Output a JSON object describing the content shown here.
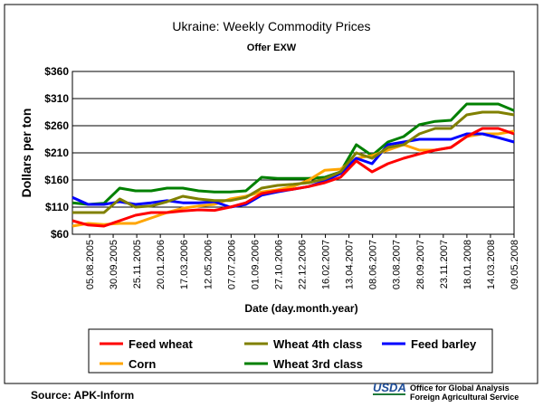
{
  "chart_data": {
    "type": "line",
    "title": "Ukraine:  Weekly Commodity Prices",
    "subtitle": "Offer EXW",
    "xlabel": "Date (day.month.year)",
    "ylabel": "Dollars per ton",
    "ylim": [
      60,
      360
    ],
    "y_ticks": [
      "$60",
      "$110",
      "$160",
      "$210",
      "$260",
      "$310",
      "$360"
    ],
    "y_tick_values": [
      60,
      110,
      160,
      210,
      260,
      310,
      360
    ],
    "x_tick_labels": [
      "05.08.2005",
      "30.09.2005",
      "25.11.2005",
      "20.01.2006",
      "17.03.2006",
      "12.05.2006",
      "07.07.2006",
      "01.09.2006",
      "27.10.2006",
      "22.12.2006",
      "16.02.2007",
      "13.04.2007",
      "08.06.2007",
      "03.08.2007",
      "28.09.2007",
      "23.11.2007",
      "18.01.2008",
      "14.03.2008",
      "09.05.2008"
    ],
    "grid": "horizontal",
    "legend_position": "bottom",
    "series": [
      {
        "name": "Feed wheat",
        "color": "#ff0000",
        "values": [
          85,
          77,
          75,
          85,
          95,
          100,
          100,
          103,
          105,
          104,
          110,
          118,
          135,
          140,
          143,
          148,
          155,
          165,
          195,
          175,
          190,
          200,
          208,
          215,
          220,
          240,
          255,
          255,
          245
        ]
      },
      {
        "name": "Wheat 4th class",
        "color": "#808000",
        "values": [
          100,
          100,
          100,
          125,
          110,
          112,
          120,
          130,
          125,
          122,
          122,
          128,
          145,
          150,
          152,
          155,
          162,
          175,
          210,
          200,
          220,
          225,
          245,
          255,
          255,
          280,
          285,
          285,
          280
        ]
      },
      {
        "name": "Feed barley",
        "color": "#0000ff",
        "values": [
          128,
          115,
          115,
          120,
          115,
          118,
          122,
          118,
          118,
          120,
          110,
          115,
          132,
          138,
          143,
          148,
          158,
          172,
          200,
          190,
          225,
          230,
          235,
          235,
          235,
          245,
          245,
          238,
          230
        ]
      },
      {
        "name": "Corn",
        "color": "#ffa500",
        "values": [
          75,
          80,
          78,
          80,
          80,
          90,
          100,
          108,
          112,
          115,
          125,
          130,
          138,
          142,
          148,
          160,
          178,
          180,
          200,
          205,
          215,
          225,
          215,
          215,
          220,
          240,
          245,
          245,
          250
        ]
      },
      {
        "name": "Wheat 3rd class",
        "color": "#008000",
        "values": [
          118,
          115,
          117,
          145,
          140,
          140,
          145,
          145,
          140,
          138,
          138,
          140,
          165,
          163,
          163,
          163,
          165,
          175,
          225,
          205,
          230,
          240,
          262,
          268,
          270,
          300,
          300,
          300,
          288
        ]
      }
    ]
  },
  "footer": {
    "source": "Source:  APK-Inform",
    "usda_logo": "USDA",
    "agency_line1": "Office for Global Analysis",
    "agency_line2": "Foreign Agricultural Service"
  }
}
